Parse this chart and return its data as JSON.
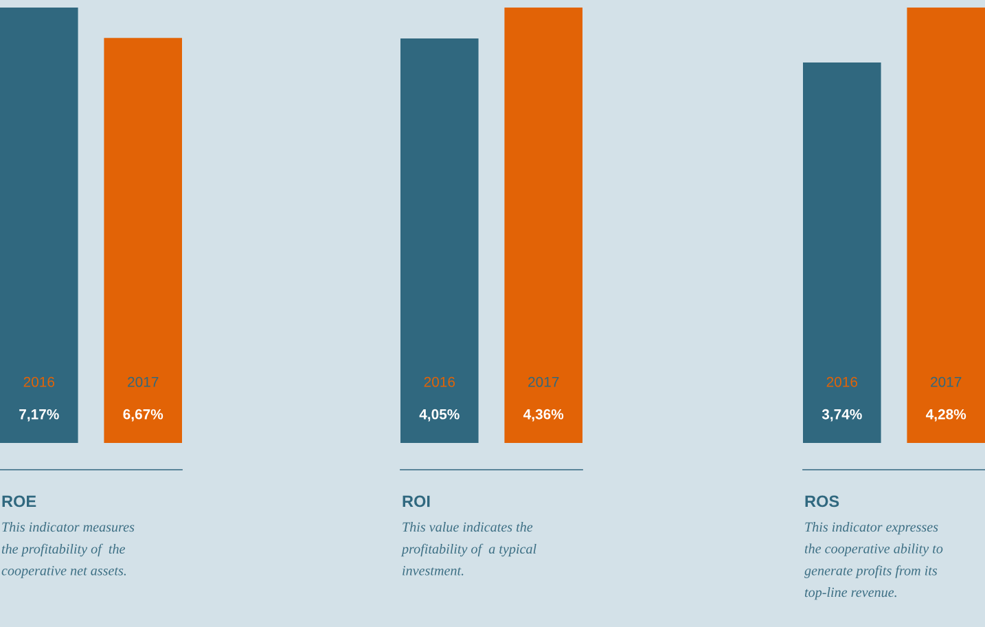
{
  "chart_data": [
    {
      "type": "bar",
      "title": "ROE",
      "categories": [
        "2016",
        "2017"
      ],
      "series": [
        {
          "colors": [
            "#30687f",
            "#e26306"
          ],
          "values": [
            7.17,
            6.67
          ],
          "value_labels": [
            "7,17%",
            "6,67%"
          ]
        }
      ],
      "annotations": [
        "This indicator measures\nthe profitability of  the\ncooperative net assets."
      ]
    },
    {
      "type": "bar",
      "title": "ROI",
      "categories": [
        "2016",
        "2017"
      ],
      "series": [
        {
          "colors": [
            "#30687f",
            "#e26306"
          ],
          "values": [
            4.05,
            4.36
          ],
          "value_labels": [
            "4,05%",
            "4,36%"
          ]
        }
      ],
      "annotations": [
        "This value indicates the\nprofitability of  a typical\ninvestment."
      ]
    },
    {
      "type": "bar",
      "title": "ROS",
      "categories": [
        "2016",
        "2017"
      ],
      "series": [
        {
          "colors": [
            "#30687f",
            "#e26306"
          ],
          "values": [
            3.74,
            4.28
          ],
          "value_labels": [
            "3,74%",
            "4,28%"
          ]
        }
      ],
      "annotations": [
        "This indicator expresses\nthe cooperative ability to\ngenerate profits from its\ntop-line revenue."
      ]
    }
  ]
}
